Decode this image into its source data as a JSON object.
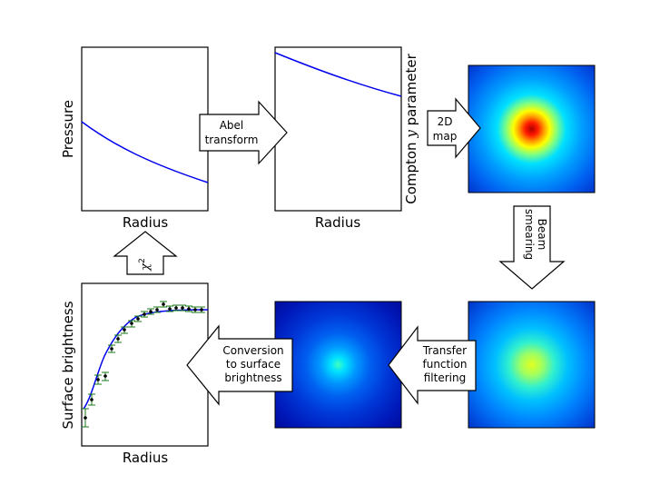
{
  "panels": {
    "pressure": {
      "ylabel": "Pressure",
      "xlabel": "Radius"
    },
    "compton": {
      "ylabel_prefix": "Compton ",
      "ylabel_var": "y",
      "ylabel_suffix": " parameter",
      "xlabel": "Radius"
    },
    "surface": {
      "ylabel": "Surface brightness",
      "xlabel": "Radius"
    }
  },
  "arrows": {
    "abel": {
      "line1": "Abel",
      "line2": "transform"
    },
    "map2d": {
      "line1": "2D",
      "line2": "map"
    },
    "beam": {
      "line1": "Beam",
      "line2": "smearing"
    },
    "transfer": {
      "line1": "Transfer",
      "line2": "function",
      "line3": "filtering"
    },
    "conversion": {
      "line1": "Conversion",
      "line2": "to surface",
      "line3": "brightness"
    },
    "chi": {
      "symbol": "χ",
      "sup": "2"
    }
  },
  "colors": {
    "model_curve": "#0000ee",
    "data_points": "#1a7a1a",
    "map_center_top": "#cc0000",
    "map_edge": "#0033cc"
  }
}
